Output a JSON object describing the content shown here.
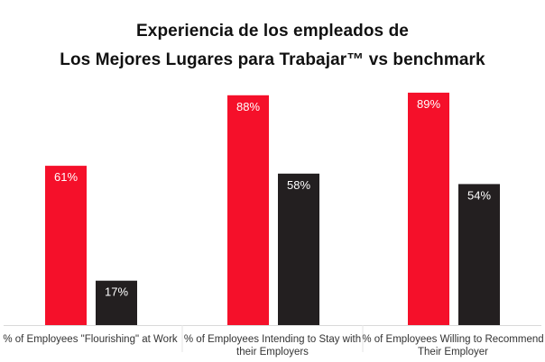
{
  "chart_data": {
    "type": "bar",
    "title_lines": [
      "Experiencia de los empleados de",
      "Los Mejores Lugares para Trabajar™ vs benchmark"
    ],
    "categories": [
      [
        "% of Employees \"Flourishing\" at Work"
      ],
      [
        "% of Employees Intending to Stay with",
        "their Employers"
      ],
      [
        "% of Employees Willing to Recommend",
        "Their Employer"
      ]
    ],
    "series": [
      {
        "values": [
          61,
          88,
          89
        ],
        "labels": [
          "61%",
          "88%",
          "89%"
        ],
        "color": "#f5102a"
      },
      {
        "values": [
          17,
          58,
          54
        ],
        "labels": [
          "17%",
          "58%",
          "54%"
        ],
        "color": "#231f20"
      }
    ],
    "ylim": [
      0,
      100
    ],
    "grid": false,
    "legend": "none"
  }
}
